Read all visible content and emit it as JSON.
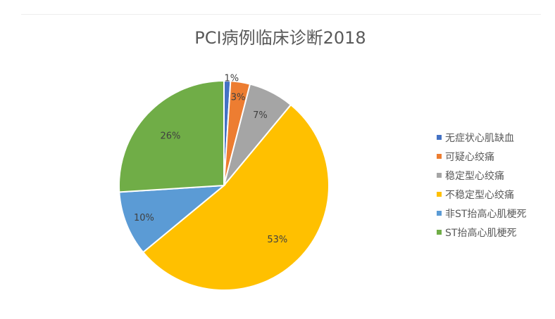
{
  "chart_data": {
    "type": "pie",
    "title": "PCI病例临床诊断2018",
    "categories": [
      "无症状心肌缺血",
      "可疑心绞痛",
      "稳定型心绞痛",
      "不稳定型心绞痛",
      "非ST抬高心肌梗死",
      "ST抬高心肌梗死"
    ],
    "values": [
      1,
      3,
      7,
      53,
      10,
      26
    ],
    "labels": [
      "1%",
      "3%",
      "7%",
      "53%",
      "10%",
      "26%"
    ],
    "colors": [
      "#4472c4",
      "#ed7d31",
      "#a5a5a5",
      "#ffc000",
      "#5b9bd5",
      "#70ad47"
    ],
    "legend_position": "right",
    "start_angle": "12 o'clock",
    "direction": "clockwise"
  }
}
